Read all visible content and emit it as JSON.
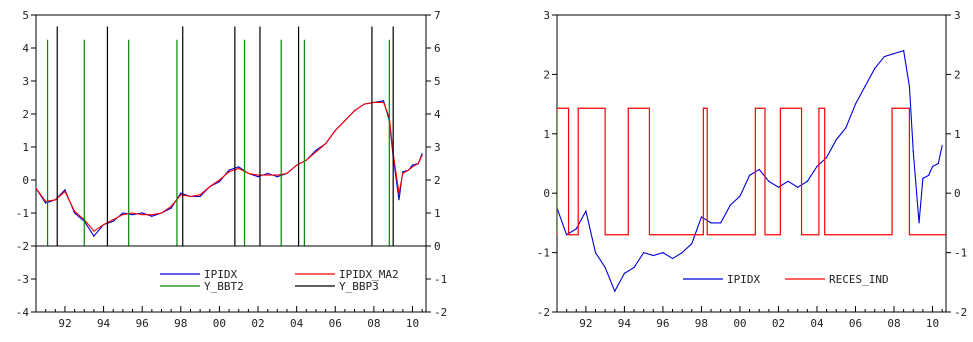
{
  "chart_data": [
    {
      "type": "line",
      "x_labels": [
        "92",
        "94",
        "96",
        "98",
        "00",
        "02",
        "04",
        "06",
        "08",
        "10"
      ],
      "x_range": [
        1990.5,
        2010.7
      ],
      "ylim_left": [
        -4,
        5
      ],
      "yticks_left": [
        "-4",
        "-3",
        "-2",
        "-1",
        "0",
        "1",
        "2",
        "3",
        "4",
        "5"
      ],
      "ylim_right": [
        -2,
        7
      ],
      "yticks_right": [
        "-2",
        "-1",
        "0",
        "1",
        "2",
        "3",
        "4",
        "5",
        "6",
        "7"
      ],
      "series": [
        {
          "name": "IPIDX",
          "axis": "left",
          "color": "#0000dd",
          "x": [
            1990.5,
            1991.0,
            1991.5,
            1992.0,
            1992.5,
            1993.0,
            1993.5,
            1994.0,
            1994.5,
            1995.0,
            1995.5,
            1996.0,
            1996.5,
            1997.0,
            1997.5,
            1998.0,
            1998.5,
            1999.0,
            1999.5,
            2000.0,
            2000.5,
            2001.0,
            2001.5,
            2002.0,
            2002.5,
            2003.0,
            2003.5,
            2004.0,
            2004.5,
            2005.0,
            2005.5,
            2006.0,
            2006.5,
            2007.0,
            2007.5,
            2008.0,
            2008.5,
            2008.8,
            2009.0,
            2009.3,
            2009.5,
            2009.8,
            2010.0,
            2010.3,
            2010.5
          ],
          "y": [
            -0.25,
            -0.7,
            -0.6,
            -0.3,
            -1.0,
            -1.25,
            -1.7,
            -1.35,
            -1.25,
            -1.0,
            -1.05,
            -1.0,
            -1.1,
            -1.0,
            -0.85,
            -0.4,
            -0.5,
            -0.5,
            -0.2,
            -0.05,
            0.3,
            0.4,
            0.2,
            0.1,
            0.2,
            0.1,
            0.2,
            0.45,
            0.6,
            0.9,
            1.1,
            1.5,
            1.8,
            2.1,
            2.3,
            2.35,
            2.4,
            1.8,
            0.7,
            -0.6,
            0.25,
            0.3,
            0.45,
            0.5,
            0.8
          ]
        },
        {
          "name": "IPIDX_MA2",
          "axis": "left",
          "color": "#ff0000",
          "x": [
            1990.5,
            1991.0,
            1991.5,
            1992.0,
            1992.5,
            1993.0,
            1993.5,
            1994.0,
            1994.5,
            1995.0,
            1995.5,
            1996.0,
            1996.5,
            1997.0,
            1997.5,
            1998.0,
            1998.5,
            1999.0,
            1999.5,
            2000.0,
            2000.5,
            2001.0,
            2001.5,
            2002.0,
            2002.5,
            2003.0,
            2003.5,
            2004.0,
            2004.5,
            2005.0,
            2005.5,
            2006.0,
            2006.5,
            2007.0,
            2007.5,
            2008.0,
            2008.5,
            2008.8,
            2009.0,
            2009.3,
            2009.5,
            2009.8,
            2010.0,
            2010.3,
            2010.5
          ],
          "y": [
            -0.25,
            -0.65,
            -0.6,
            -0.35,
            -0.95,
            -1.2,
            -1.55,
            -1.35,
            -1.2,
            -1.05,
            -1.0,
            -1.05,
            -1.05,
            -1.0,
            -0.8,
            -0.45,
            -0.5,
            -0.45,
            -0.2,
            0.0,
            0.25,
            0.35,
            0.2,
            0.15,
            0.15,
            0.15,
            0.2,
            0.45,
            0.6,
            0.85,
            1.1,
            1.5,
            1.8,
            2.1,
            2.3,
            2.35,
            2.35,
            1.9,
            0.8,
            -0.4,
            0.2,
            0.3,
            0.4,
            0.5,
            0.75
          ]
        },
        {
          "name": "Y_BBT2",
          "axis": "right",
          "color": "#008800",
          "kind": "spikes",
          "baseline": 0,
          "height": 6.25,
          "x": [
            1991.1,
            1993.0,
            1995.3,
            1997.8,
            2001.3,
            2003.2,
            2004.4,
            2008.8
          ]
        },
        {
          "name": "Y_BBP3",
          "axis": "right",
          "color": "#000000",
          "kind": "spikes",
          "baseline": 0,
          "height": 6.65,
          "x": [
            1991.6,
            1994.2,
            1998.1,
            2000.8,
            2002.1,
            2004.1,
            2007.9,
            2009.0
          ]
        }
      ],
      "legend": "bottom-right",
      "grid": false
    },
    {
      "type": "line",
      "x_labels": [
        "92",
        "94",
        "96",
        "98",
        "00",
        "02",
        "04",
        "06",
        "08",
        "10"
      ],
      "x_range": [
        1990.5,
        2010.7
      ],
      "ylim_left": [
        -2,
        3
      ],
      "yticks_left": [
        "-2",
        "-1",
        "0",
        "1",
        "2",
        "3"
      ],
      "ylim_right": [
        -2,
        3
      ],
      "yticks_right": [
        "-2",
        "-1",
        "0",
        "1",
        "2",
        "3"
      ],
      "series": [
        {
          "name": "IPIDX",
          "axis": "left",
          "color": "#0000dd",
          "x": [
            1990.5,
            1991.0,
            1991.5,
            1992.0,
            1992.5,
            1993.0,
            1993.5,
            1994.0,
            1994.5,
            1995.0,
            1995.5,
            1996.0,
            1996.5,
            1997.0,
            1997.5,
            1998.0,
            1998.5,
            1999.0,
            1999.5,
            2000.0,
            2000.5,
            2001.0,
            2001.5,
            2002.0,
            2002.5,
            2003.0,
            2003.5,
            2004.0,
            2004.5,
            2005.0,
            2005.5,
            2006.0,
            2006.5,
            2007.0,
            2007.5,
            2008.0,
            2008.5,
            2008.8,
            2009.0,
            2009.3,
            2009.5,
            2009.8,
            2010.0,
            2010.3,
            2010.5
          ],
          "y": [
            -0.25,
            -0.7,
            -0.6,
            -0.3,
            -1.0,
            -1.25,
            -1.65,
            -1.35,
            -1.25,
            -1.0,
            -1.05,
            -1.0,
            -1.1,
            -1.0,
            -0.85,
            -0.4,
            -0.5,
            -0.5,
            -0.2,
            -0.05,
            0.3,
            0.4,
            0.2,
            0.1,
            0.2,
            0.1,
            0.2,
            0.45,
            0.6,
            0.9,
            1.1,
            1.5,
            1.8,
            2.1,
            2.3,
            2.35,
            2.4,
            1.8,
            0.7,
            -0.5,
            0.25,
            0.3,
            0.45,
            0.5,
            0.8
          ]
        },
        {
          "name": "RECES_IND",
          "axis": "left",
          "color": "#ff0000",
          "kind": "step",
          "low": -0.7,
          "high": 1.43,
          "high_periods": [
            [
              1990.5,
              1991.1
            ],
            [
              1991.6,
              1993.0
            ],
            [
              1994.2,
              1995.3
            ],
            [
              1998.1,
              1998.3
            ],
            [
              2000.8,
              2001.3
            ],
            [
              2002.1,
              2003.2
            ],
            [
              2004.1,
              2004.4
            ],
            [
              2007.9,
              2008.8
            ]
          ]
        }
      ],
      "legend": "bottom-right",
      "grid": false
    }
  ]
}
